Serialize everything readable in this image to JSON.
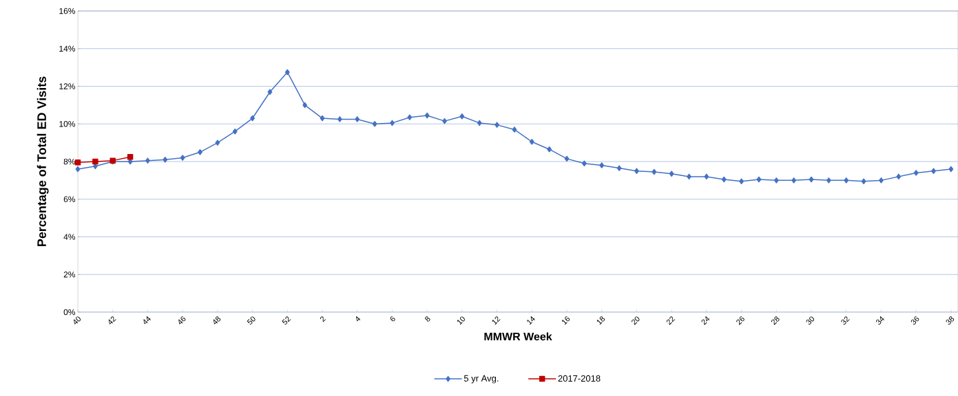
{
  "chart_data": {
    "type": "line",
    "xlabel": "MMWR Week",
    "ylabel": "Percentage of Total ED Visits",
    "categories": [
      "40",
      null,
      "42",
      null,
      "44",
      null,
      "46",
      null,
      "48",
      null,
      "50",
      null,
      "52",
      null,
      "2",
      null,
      "4",
      null,
      "6",
      null,
      "8",
      null,
      "10",
      null,
      "12",
      null,
      "14",
      null,
      "16",
      null,
      "18",
      null,
      "20",
      null,
      "22",
      null,
      "24",
      null,
      "26",
      null,
      "28",
      null,
      "30",
      null,
      "32",
      null,
      "34",
      null,
      "36",
      null,
      "38"
    ],
    "series": [
      {
        "name": "5 yr Avg.",
        "color": "#4472c4",
        "marker": "diamond",
        "values": [
          7.6,
          7.75,
          8.0,
          8.0,
          8.05,
          8.1,
          8.2,
          8.5,
          9.0,
          9.6,
          10.3,
          11.7,
          12.75,
          11.0,
          10.3,
          10.25,
          10.25,
          10.0,
          10.05,
          10.35,
          10.45,
          10.15,
          10.4,
          10.05,
          9.95,
          9.7,
          9.05,
          8.65,
          8.15,
          7.9,
          7.8,
          7.65,
          7.5,
          7.45,
          7.35,
          7.2,
          7.2,
          7.05,
          6.95,
          7.05,
          7.0,
          7.0,
          7.05,
          7.0,
          7.0,
          6.95,
          7.0,
          7.2,
          7.4,
          7.5,
          7.6
        ]
      },
      {
        "name": "2017-2018",
        "color": "#c00000",
        "marker": "square",
        "values": [
          7.95,
          8.0,
          8.05,
          8.25,
          null,
          null,
          null,
          null,
          null,
          null,
          null,
          null,
          null,
          null,
          null,
          null,
          null,
          null,
          null,
          null,
          null,
          null,
          null,
          null,
          null,
          null,
          null,
          null,
          null,
          null,
          null,
          null,
          null,
          null,
          null,
          null,
          null,
          null,
          null,
          null,
          null,
          null,
          null,
          null,
          null,
          null,
          null,
          null,
          null,
          null,
          null
        ]
      }
    ],
    "ylim": [
      0,
      16
    ],
    "yticks": [
      {
        "value": 0,
        "label": "0%"
      },
      {
        "value": 2,
        "label": "2%"
      },
      {
        "value": 4,
        "label": "4%"
      },
      {
        "value": 6,
        "label": "6%"
      },
      {
        "value": 8,
        "label": "8%"
      },
      {
        "value": 10,
        "label": "10%"
      },
      {
        "value": 12,
        "label": "12%"
      },
      {
        "value": 14,
        "label": "14%"
      },
      {
        "value": 16,
        "label": "16%"
      }
    ],
    "grid": "y",
    "legend": "bottom",
    "line_style": "solid"
  }
}
